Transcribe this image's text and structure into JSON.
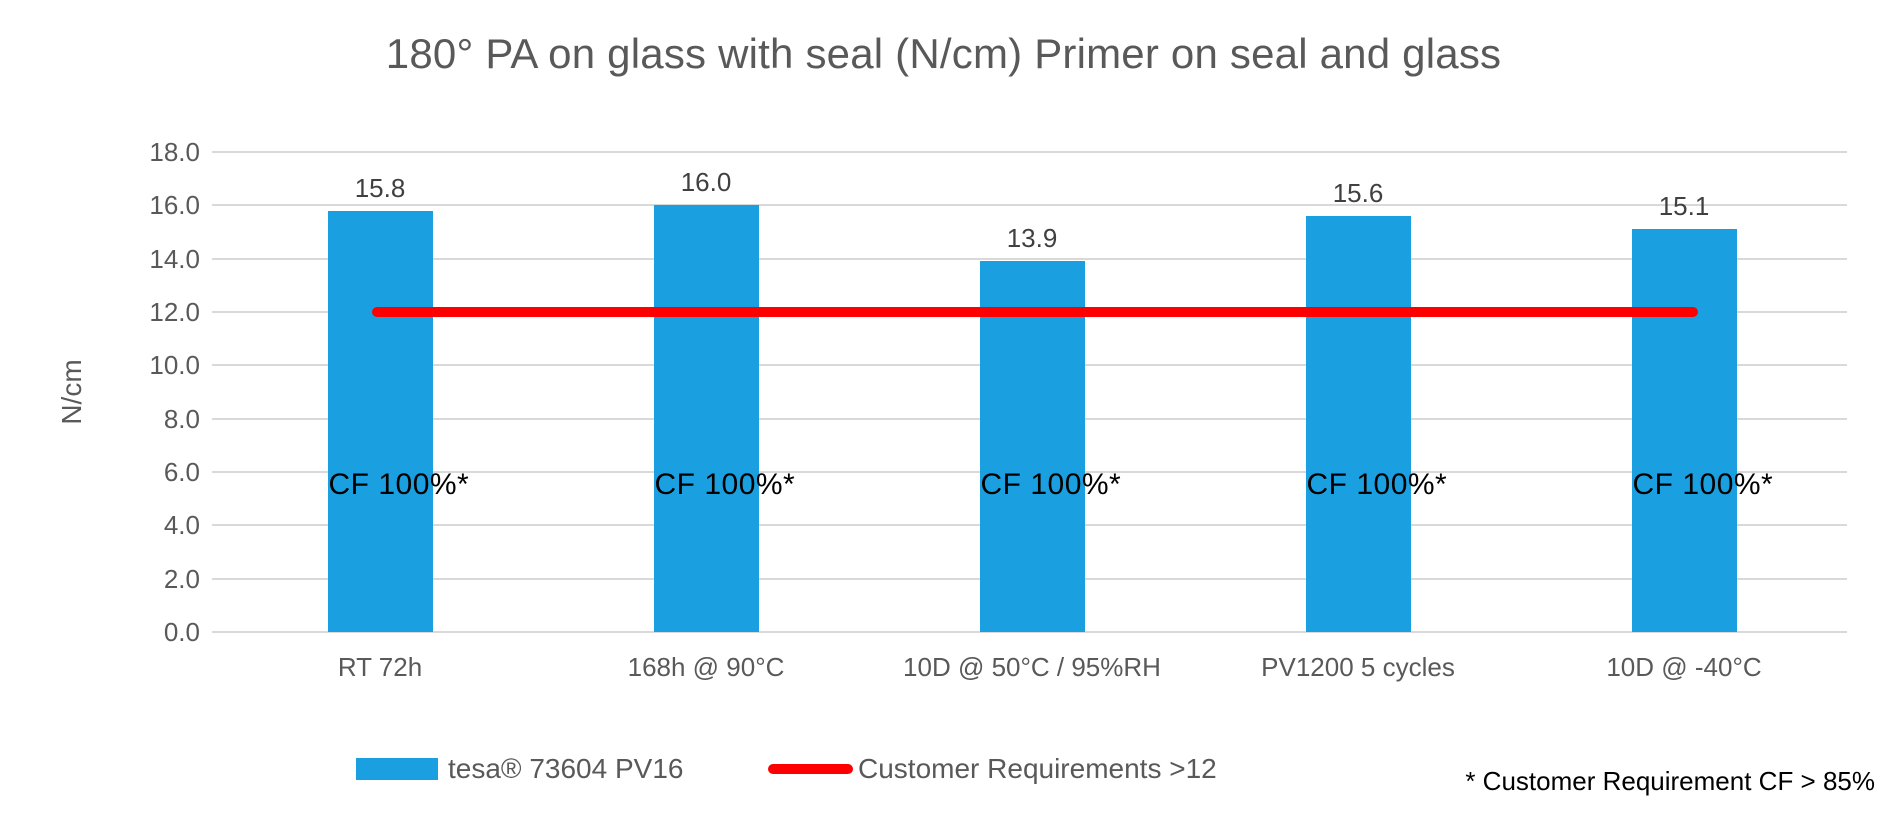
{
  "chart_data": {
    "type": "bar",
    "title": "180° PA on glass with seal (N/cm) Primer on seal and glass",
    "xlabel": "",
    "ylabel": "N/cm",
    "categories": [
      "RT 72h",
      "168h @ 90°C",
      "10D @ 50°C / 95%RH",
      "PV1200 5 cycles",
      "10D @ -40°C"
    ],
    "series": [
      {
        "name": "tesa® 73604 PV16",
        "values": [
          15.8,
          16.0,
          13.9,
          15.6,
          15.1
        ],
        "color": "#1AA0E0"
      }
    ],
    "value_labels": [
      "15.8",
      "16.0",
      "13.9",
      "15.6",
      "15.1"
    ],
    "bar_annotations": [
      "CF 100%*",
      "CF 100%*",
      "CF 100%*",
      "CF 100%*",
      "CF 100%*"
    ],
    "threshold_line": {
      "value": 12,
      "label": "Customer Requirements >12",
      "color": "#FF0000"
    },
    "ylim": [
      0,
      18
    ],
    "ytick_step": 2,
    "yticks": [
      "18.0",
      "16.0",
      "14.0",
      "12.0",
      "10.0",
      "8.0",
      "6.0",
      "4.0",
      "2.0",
      "0.0"
    ],
    "grid": true,
    "gridline_color": "#D9D9D9",
    "legend_position": "bottom"
  },
  "legend": {
    "items": [
      {
        "label": "tesa® 73604 PV16",
        "swatch": "bar",
        "color": "#1AA0E0"
      },
      {
        "label": "Customer Requirements >12",
        "swatch": "line",
        "color": "#FF0000"
      }
    ]
  },
  "footnote": "* Customer Requirement CF > 85%"
}
